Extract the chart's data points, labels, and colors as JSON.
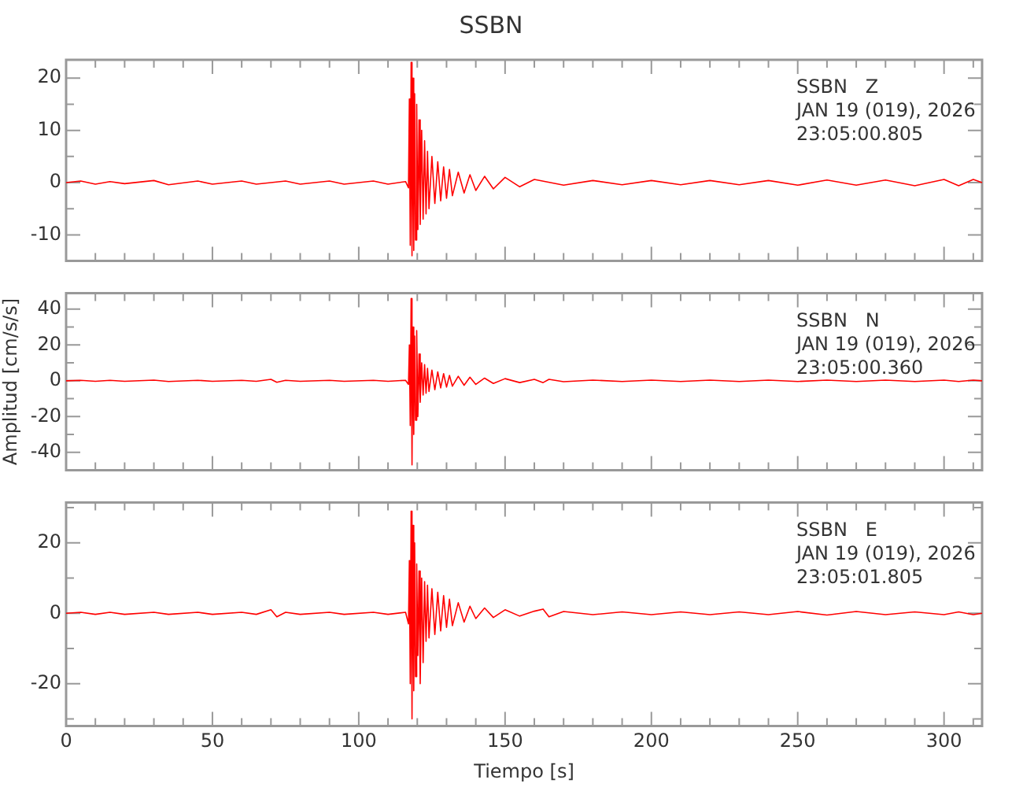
{
  "chart_data": [
    {
      "type": "line",
      "title": "SSBN",
      "annotations": [
        "SSBN   Z",
        "JAN 19 (019), 2026",
        "23:05:00.805"
      ],
      "tick_labels": "y",
      "x": [
        0,
        5,
        10,
        15,
        20,
        30,
        35,
        45,
        50,
        60,
        65,
        75,
        80,
        90,
        95,
        105,
        110,
        116,
        117,
        117.3,
        117.6,
        117.9,
        118.2,
        118.5,
        118.8,
        119.1,
        119.4,
        119.8,
        120.2,
        120.6,
        121,
        121.5,
        122,
        122.5,
        123,
        123.5,
        124,
        125,
        126,
        127,
        128,
        129,
        130,
        131,
        132,
        134,
        136,
        138,
        140,
        143,
        146,
        150,
        155,
        160,
        170,
        180,
        190,
        200,
        210,
        220,
        230,
        240,
        250,
        260,
        270,
        280,
        290,
        300,
        305,
        310,
        313
      ],
      "series": [
        {
          "color": "#ff0000",
          "values": [
            0,
            0.3,
            -0.3,
            0.2,
            -0.2,
            0.4,
            -0.4,
            0.3,
            -0.3,
            0.3,
            -0.3,
            0.3,
            -0.3,
            0.3,
            -0.3,
            0.3,
            -0.3,
            0.2,
            -1,
            16,
            -12,
            23,
            -14,
            20,
            -13,
            17,
            -11,
            15,
            -9,
            12,
            -8,
            10,
            -7,
            8,
            -6,
            6,
            -5,
            5,
            -4,
            4,
            -3.5,
            3,
            -3,
            2.5,
            -2.5,
            2,
            -2,
            1.5,
            -1.5,
            1.2,
            -1.2,
            1,
            -0.8,
            0.6,
            -0.5,
            0.4,
            -0.4,
            0.4,
            -0.4,
            0.4,
            -0.4,
            0.4,
            -0.5,
            0.5,
            -0.5,
            0.5,
            -0.6,
            0.6,
            -0.6,
            0.6,
            0
          ]
        }
      ],
      "xlim": [
        0,
        313
      ],
      "xticks": [
        0,
        {
          "value": 10,
          "label": null
        },
        {
          "value": 20,
          "label": null
        },
        {
          "value": 30,
          "label": null
        },
        {
          "value": 40,
          "label": null
        },
        50,
        {
          "value": 60,
          "label": null
        },
        {
          "value": 70,
          "label": null
        },
        {
          "value": 80,
          "label": null
        },
        {
          "value": 90,
          "label": null
        },
        100,
        {
          "value": 110,
          "label": null
        },
        {
          "value": 120,
          "label": null
        },
        {
          "value": 130,
          "label": null
        },
        {
          "value": 140,
          "label": null
        },
        150,
        {
          "value": 160,
          "label": null
        },
        {
          "value": 170,
          "label": null
        },
        {
          "value": 180,
          "label": null
        },
        {
          "value": 190,
          "label": null
        },
        200,
        {
          "value": 210,
          "label": null
        },
        {
          "value": 220,
          "label": null
        },
        {
          "value": 230,
          "label": null
        },
        {
          "value": 240,
          "label": null
        },
        250,
        {
          "value": 260,
          "label": null
        },
        {
          "value": 270,
          "label": null
        },
        {
          "value": 280,
          "label": null
        },
        {
          "value": 290,
          "label": null
        },
        300,
        {
          "value": 310,
          "label": null
        }
      ],
      "ylim": [
        -15,
        23.5
      ],
      "yticks": [
        {
          "value": -15,
          "label": null
        },
        -10,
        {
          "value": -5,
          "label": null
        },
        0,
        {
          "value": 5,
          "label": null
        },
        10,
        {
          "value": 15,
          "label": null
        },
        20
      ]
    },
    {
      "type": "line",
      "ylabel": "Amplitud [cm/s/s]",
      "annotations": [
        "SSBN   N",
        "JAN 19 (019), 2026",
        "23:05:00.360"
      ],
      "tick_labels": "y",
      "x": [
        0,
        5,
        10,
        15,
        20,
        30,
        35,
        45,
        50,
        60,
        65,
        70,
        72,
        75,
        80,
        90,
        95,
        105,
        110,
        116,
        117,
        117.3,
        117.6,
        117.9,
        118.2,
        118.5,
        118.8,
        119.1,
        119.4,
        119.8,
        120.2,
        120.6,
        121,
        121.5,
        122,
        122.5,
        123,
        123.5,
        124,
        125,
        126,
        127,
        128,
        129,
        130,
        131,
        132,
        134,
        136,
        138,
        140,
        143,
        146,
        150,
        155,
        160,
        163,
        165,
        170,
        180,
        190,
        200,
        210,
        220,
        230,
        240,
        250,
        260,
        270,
        280,
        290,
        300,
        305,
        310,
        313
      ],
      "series": [
        {
          "color": "#ff0000",
          "values": [
            0,
            0.3,
            -0.3,
            0.3,
            -0.3,
            0.4,
            -0.4,
            0.3,
            -0.3,
            0.3,
            -0.3,
            0.8,
            -0.8,
            0.3,
            -0.3,
            0.3,
            -0.3,
            0.3,
            -0.3,
            0.3,
            -2,
            20,
            -25,
            46,
            -47,
            30,
            -30,
            25,
            -22,
            28,
            -20,
            15,
            -12,
            10,
            -8,
            9,
            -7,
            7,
            -6,
            6,
            -5,
            5,
            -4,
            4,
            -3.5,
            3,
            -3,
            2.5,
            -2.5,
            2,
            -2,
            1.5,
            -1.5,
            1.2,
            -1,
            0.8,
            -1,
            0.8,
            -0.5,
            0.4,
            -0.4,
            0.4,
            -0.4,
            0.4,
            -0.4,
            0.4,
            -0.4,
            0.4,
            -0.4,
            0.4,
            -0.4,
            0.4,
            -0.4,
            0.4,
            0
          ]
        }
      ],
      "xlim": [
        0,
        313
      ],
      "xticks": [
        0,
        {
          "value": 10,
          "label": null
        },
        {
          "value": 20,
          "label": null
        },
        {
          "value": 30,
          "label": null
        },
        {
          "value": 40,
          "label": null
        },
        50,
        {
          "value": 60,
          "label": null
        },
        {
          "value": 70,
          "label": null
        },
        {
          "value": 80,
          "label": null
        },
        {
          "value": 90,
          "label": null
        },
        100,
        {
          "value": 110,
          "label": null
        },
        {
          "value": 120,
          "label": null
        },
        {
          "value": 130,
          "label": null
        },
        {
          "value": 140,
          "label": null
        },
        150,
        {
          "value": 160,
          "label": null
        },
        {
          "value": 170,
          "label": null
        },
        {
          "value": 180,
          "label": null
        },
        {
          "value": 190,
          "label": null
        },
        200,
        {
          "value": 210,
          "label": null
        },
        {
          "value": 220,
          "label": null
        },
        {
          "value": 230,
          "label": null
        },
        {
          "value": 240,
          "label": null
        },
        250,
        {
          "value": 260,
          "label": null
        },
        {
          "value": 270,
          "label": null
        },
        {
          "value": 280,
          "label": null
        },
        {
          "value": 290,
          "label": null
        },
        300,
        {
          "value": 310,
          "label": null
        }
      ],
      "ylim": [
        -50,
        49
      ],
      "yticks": [
        {
          "value": -50,
          "label": null
        },
        -40,
        {
          "value": -30,
          "label": null
        },
        -20,
        {
          "value": -10,
          "label": null
        },
        0,
        {
          "value": 10,
          "label": null
        },
        20,
        {
          "value": 30,
          "label": null
        },
        40
      ]
    },
    {
      "type": "line",
      "xlabel": "Tiempo [s]",
      "annotations": [
        "SSBN   E",
        "JAN 19 (019), 2026",
        "23:05:01.805"
      ],
      "x": [
        0,
        5,
        10,
        15,
        20,
        30,
        35,
        45,
        50,
        60,
        65,
        70,
        72,
        75,
        80,
        90,
        95,
        105,
        110,
        116,
        117,
        117.3,
        117.6,
        117.9,
        118.2,
        118.5,
        118.8,
        119.1,
        119.4,
        119.8,
        120.2,
        120.6,
        121,
        121.5,
        122,
        122.5,
        123,
        123.5,
        124,
        125,
        126,
        127,
        128,
        129,
        130,
        131,
        132,
        134,
        136,
        138,
        140,
        143,
        146,
        150,
        155,
        160,
        163,
        165,
        170,
        180,
        190,
        200,
        210,
        220,
        230,
        240,
        250,
        260,
        270,
        280,
        290,
        300,
        305,
        310,
        313
      ],
      "series": [
        {
          "color": "#ff0000",
          "values": [
            0,
            0.3,
            -0.3,
            0.3,
            -0.3,
            0.3,
            -0.3,
            0.3,
            -0.3,
            0.3,
            -0.3,
            1,
            -1,
            0.3,
            -0.3,
            0.3,
            -0.3,
            0.3,
            -0.3,
            0.3,
            -3,
            15,
            -20,
            29,
            -30,
            25,
            -22,
            20,
            -18,
            14,
            -12,
            12,
            -20,
            10,
            -14,
            9,
            -8,
            8,
            -7,
            7,
            -6,
            6,
            -5,
            5,
            -4,
            4,
            -3.5,
            3,
            -2.5,
            2,
            -1.5,
            1.5,
            -1.2,
            1,
            -0.8,
            0.6,
            1.2,
            -1,
            0.5,
            -0.4,
            0.4,
            -0.4,
            0.4,
            -0.4,
            0.4,
            -0.4,
            0.5,
            -0.5,
            0.5,
            -0.4,
            0.4,
            -0.4,
            0.4,
            -0.4,
            0
          ]
        }
      ],
      "xlim": [
        0,
        313
      ],
      "xticks": [
        0,
        {
          "value": 10,
          "label": null
        },
        {
          "value": 20,
          "label": null
        },
        {
          "value": 30,
          "label": null
        },
        {
          "value": 40,
          "label": null
        },
        50,
        {
          "value": 60,
          "label": null
        },
        {
          "value": 70,
          "label": null
        },
        {
          "value": 80,
          "label": null
        },
        {
          "value": 90,
          "label": null
        },
        100,
        {
          "value": 110,
          "label": null
        },
        {
          "value": 120,
          "label": null
        },
        {
          "value": 130,
          "label": null
        },
        {
          "value": 140,
          "label": null
        },
        150,
        {
          "value": 160,
          "label": null
        },
        {
          "value": 170,
          "label": null
        },
        {
          "value": 180,
          "label": null
        },
        {
          "value": 190,
          "label": null
        },
        200,
        {
          "value": 210,
          "label": null
        },
        {
          "value": 220,
          "label": null
        },
        {
          "value": 230,
          "label": null
        },
        {
          "value": 240,
          "label": null
        },
        250,
        {
          "value": 260,
          "label": null
        },
        {
          "value": 270,
          "label": null
        },
        {
          "value": 280,
          "label": null
        },
        {
          "value": 290,
          "label": null
        },
        300,
        {
          "value": 310,
          "label": null
        }
      ],
      "ylim": [
        -32,
        31.5
      ],
      "yticks": [
        {
          "value": -30,
          "label": null
        },
        -20,
        {
          "value": -10,
          "label": null
        },
        0,
        {
          "value": 10,
          "label": null
        },
        20,
        {
          "value": 30,
          "label": null
        }
      ]
    }
  ]
}
